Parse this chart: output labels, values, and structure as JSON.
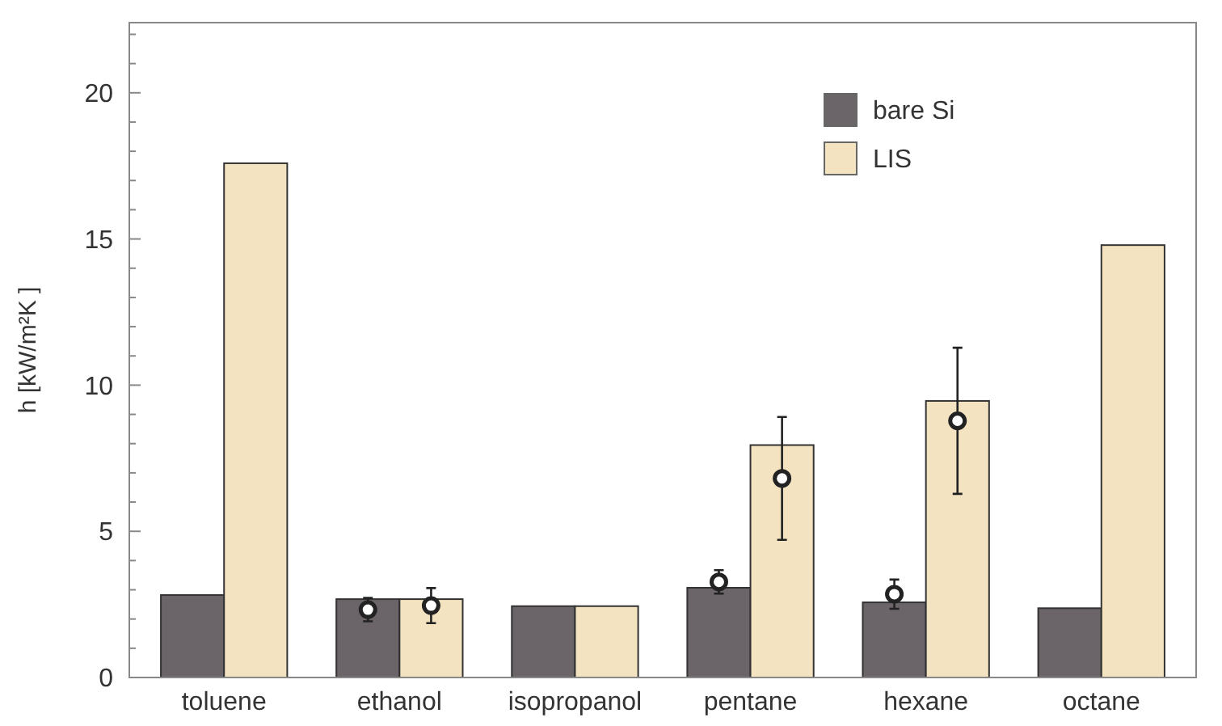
{
  "chart_data": {
    "type": "bar",
    "ylabel": "h [kW/m²K ]",
    "categories": [
      "toluene",
      "ethanol",
      "isopropanol",
      "pentane",
      "hexane",
      "octane"
    ],
    "ylim": [
      0,
      22.4
    ],
    "yticks": [
      0,
      {
        "value": 1,
        "label": null
      },
      {
        "value": 2,
        "label": null
      },
      {
        "value": 3,
        "label": null
      },
      {
        "value": 4,
        "label": null
      },
      5,
      {
        "value": 6,
        "label": null
      },
      {
        "value": 7,
        "label": null
      },
      {
        "value": 8,
        "label": null
      },
      {
        "value": 9,
        "label": null
      },
      10,
      {
        "value": 11,
        "label": null
      },
      {
        "value": 12,
        "label": null
      },
      {
        "value": 13,
        "label": null
      },
      {
        "value": 14,
        "label": null
      },
      15,
      {
        "value": 16,
        "label": null
      },
      {
        "value": 17,
        "label": null
      },
      {
        "value": 18,
        "label": null
      },
      {
        "value": 19,
        "label": null
      },
      20,
      {
        "value": 21,
        "label": null
      },
      {
        "value": 22,
        "label": null
      }
    ],
    "grid": false,
    "legend": "top right",
    "series": [
      {
        "name": "bare Si",
        "color": "#6b6468",
        "values": [
          2.82,
          2.68,
          2.44,
          3.07,
          2.57,
          2.37
        ]
      },
      {
        "name": "LIS",
        "color": "#f3e3c0",
        "values": [
          17.59,
          2.68,
          2.44,
          7.95,
          9.46,
          14.79
        ]
      },
      {
        "type": "scatter",
        "color": "#222222",
        "marker": "circle",
        "values": [
          null,
          2.32,
          null,
          3.27,
          2.85,
          null
        ],
        "errors": [
          null,
          0.4,
          null,
          0.4,
          0.5,
          null
        ]
      },
      {
        "type": "scatter",
        "color": "#222222",
        "marker": "circle",
        "values": [
          null,
          2.46,
          null,
          6.81,
          8.78,
          null
        ],
        "errors": [
          null,
          0.6,
          null,
          2.1,
          2.5,
          null
        ]
      }
    ]
  }
}
